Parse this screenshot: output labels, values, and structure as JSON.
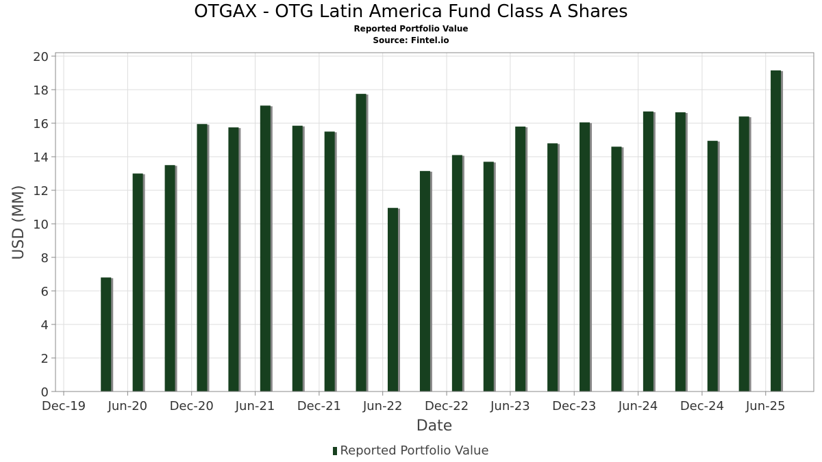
{
  "header": {
    "title": "OTGAX - OTG Latin America Fund Class A Shares",
    "subtitle": "Reported Portfolio Value",
    "source": "Source: Fintel.io"
  },
  "legend": {
    "label": "Reported Portfolio Value"
  },
  "colors": {
    "bar": "#17401f",
    "shadow": "#888888",
    "grid": "#dddddd",
    "axis": "#888888"
  },
  "chart_data": {
    "type": "bar",
    "title": "OTGAX - OTG Latin America Fund Class A Shares",
    "subtitle": "Reported Portfolio Value",
    "xlabel": "Date",
    "ylabel": "USD (MM)",
    "ylim": [
      0,
      20
    ],
    "yticks": [
      0,
      2,
      4,
      6,
      8,
      10,
      12,
      14,
      16,
      18,
      20
    ],
    "xlim": [
      "2019-12-01",
      "2025-10-01"
    ],
    "xticks": [
      {
        "date": "2019-12-01",
        "label": "Dec-19"
      },
      {
        "date": "2020-06-01",
        "label": "Jun-20"
      },
      {
        "date": "2020-12-01",
        "label": "Dec-20"
      },
      {
        "date": "2021-06-01",
        "label": "Jun-21"
      },
      {
        "date": "2021-12-01",
        "label": "Dec-21"
      },
      {
        "date": "2022-06-01",
        "label": "Jun-22"
      },
      {
        "date": "2022-12-01",
        "label": "Dec-22"
      },
      {
        "date": "2023-06-01",
        "label": "Jun-23"
      },
      {
        "date": "2023-12-01",
        "label": "Dec-23"
      },
      {
        "date": "2024-06-01",
        "label": "Jun-24"
      },
      {
        "date": "2024-12-01",
        "label": "Dec-24"
      },
      {
        "date": "2025-06-01",
        "label": "Jun-25"
      }
    ],
    "grid": true,
    "legend_position": "bottom",
    "series": [
      {
        "name": "Reported Portfolio Value",
        "points": [
          {
            "x": "2020-03-31",
            "y": 6.8
          },
          {
            "x": "2020-06-30",
            "y": 13.0
          },
          {
            "x": "2020-09-30",
            "y": 13.5
          },
          {
            "x": "2020-12-31",
            "y": 15.95
          },
          {
            "x": "2021-03-31",
            "y": 15.75
          },
          {
            "x": "2021-06-30",
            "y": 17.05
          },
          {
            "x": "2021-09-30",
            "y": 15.85
          },
          {
            "x": "2021-12-31",
            "y": 15.5
          },
          {
            "x": "2022-03-31",
            "y": 17.75
          },
          {
            "x": "2022-06-30",
            "y": 10.95
          },
          {
            "x": "2022-09-30",
            "y": 13.15
          },
          {
            "x": "2022-12-31",
            "y": 14.1
          },
          {
            "x": "2023-03-31",
            "y": 13.7
          },
          {
            "x": "2023-06-30",
            "y": 15.8
          },
          {
            "x": "2023-09-30",
            "y": 14.8
          },
          {
            "x": "2023-12-31",
            "y": 16.05
          },
          {
            "x": "2024-03-31",
            "y": 14.6
          },
          {
            "x": "2024-06-30",
            "y": 16.7
          },
          {
            "x": "2024-09-30",
            "y": 16.65
          },
          {
            "x": "2024-12-31",
            "y": 14.95
          },
          {
            "x": "2025-03-31",
            "y": 16.4
          },
          {
            "x": "2025-06-30",
            "y": 19.15
          }
        ]
      }
    ]
  }
}
